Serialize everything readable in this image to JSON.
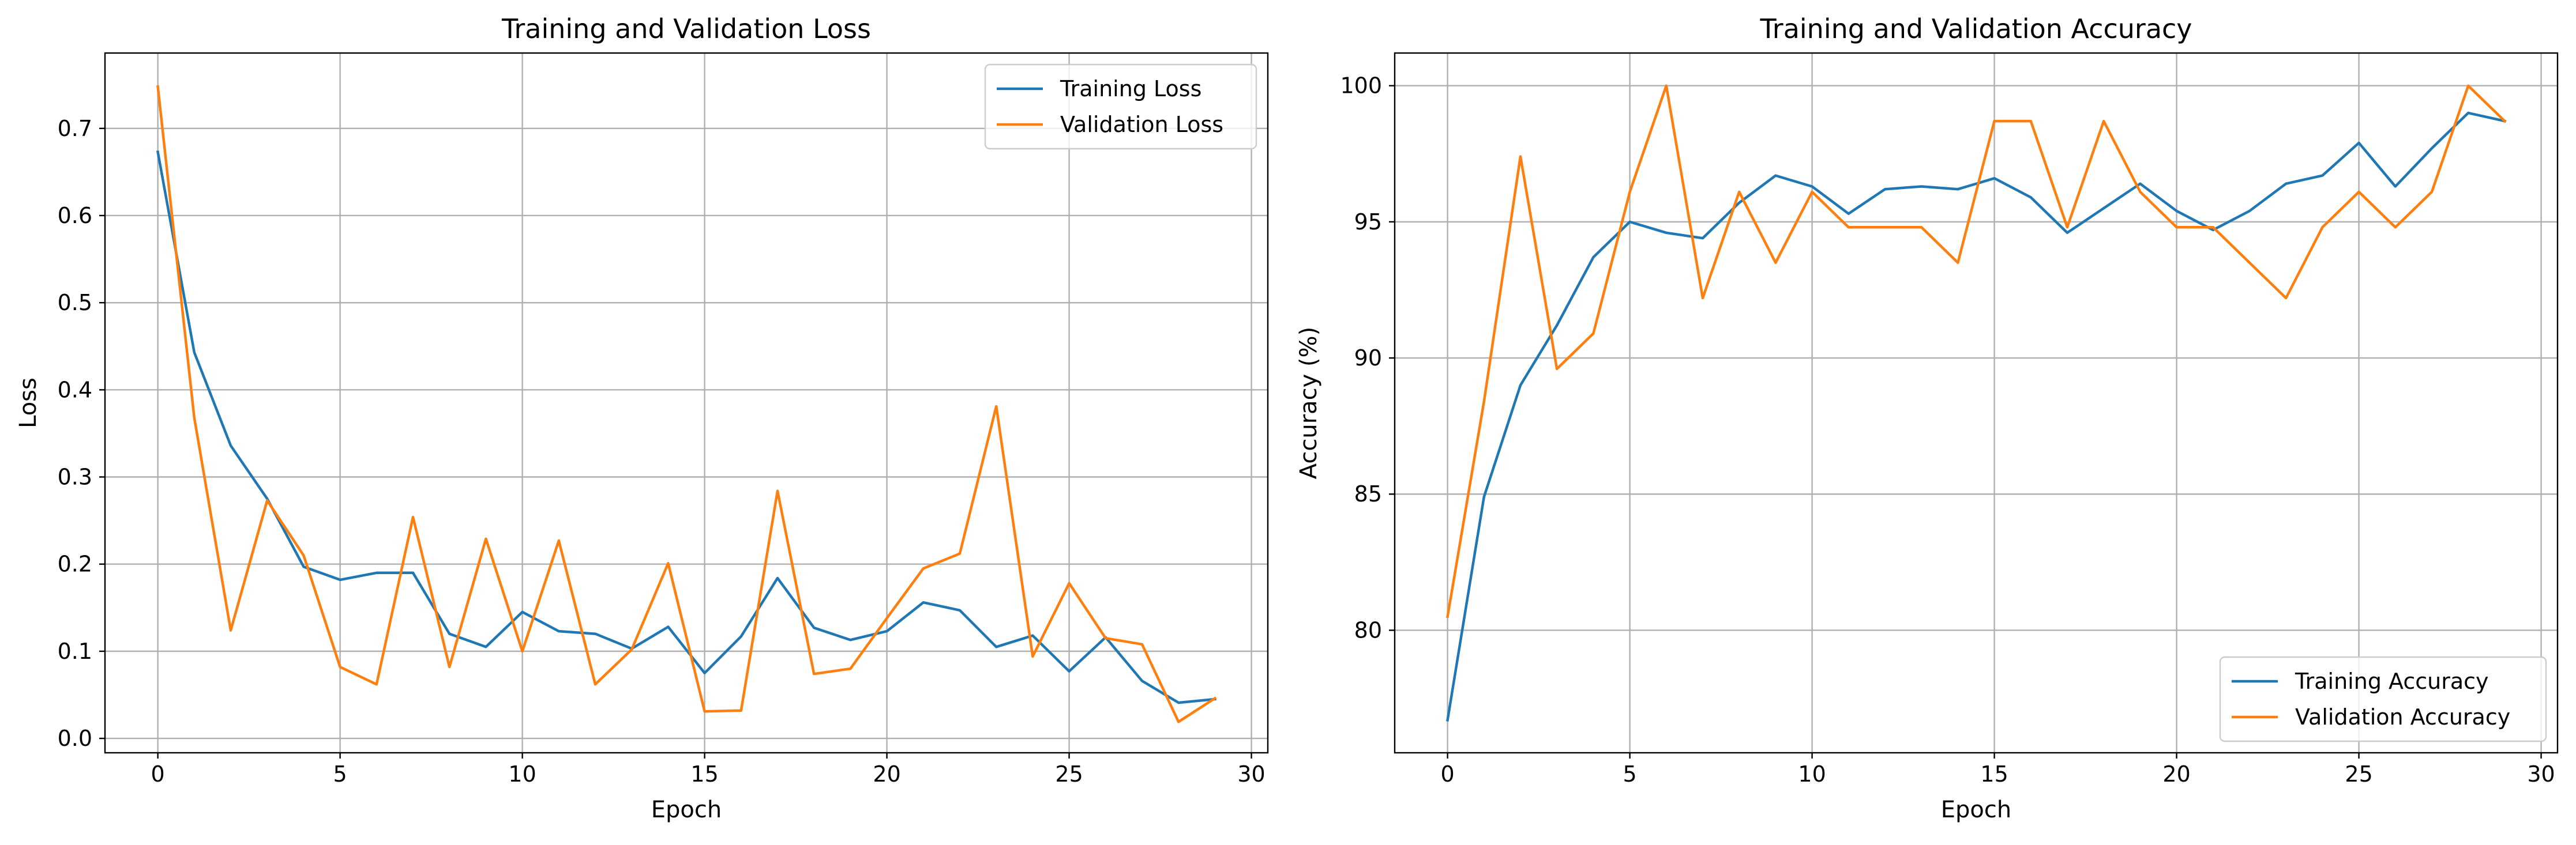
{
  "chart_data": [
    {
      "type": "line",
      "title": "Training and Validation Loss",
      "xlabel": "Epoch",
      "ylabel": "Loss",
      "xlim": [
        -1.45,
        30.45
      ],
      "ylim": [
        -0.0165,
        0.7865
      ],
      "xticks": [
        0,
        5,
        10,
        15,
        20,
        25,
        30
      ],
      "yticks": [
        0.0,
        0.1,
        0.2,
        0.3,
        0.4,
        0.5,
        0.6,
        0.7
      ],
      "ytick_labels": [
        "0.0",
        "0.1",
        "0.2",
        "0.3",
        "0.4",
        "0.5",
        "0.6",
        "0.7"
      ],
      "grid": true,
      "legend": "upper right",
      "x": [
        0,
        1,
        2,
        3,
        4,
        5,
        6,
        7,
        8,
        9,
        10,
        11,
        12,
        13,
        14,
        15,
        16,
        17,
        18,
        19,
        20,
        21,
        22,
        23,
        24,
        25,
        26,
        27,
        28,
        29
      ],
      "series": [
        {
          "name": "Training Loss",
          "color": "#1f77b4",
          "values": [
            0.673,
            0.443,
            0.336,
            0.275,
            0.197,
            0.182,
            0.19,
            0.19,
            0.12,
            0.105,
            0.145,
            0.123,
            0.12,
            0.103,
            0.128,
            0.075,
            0.117,
            0.184,
            0.127,
            0.113,
            0.123,
            0.156,
            0.147,
            0.105,
            0.118,
            0.077,
            0.116,
            0.066,
            0.041,
            0.045
          ]
        },
        {
          "name": "Validation Loss",
          "color": "#ff7f0e",
          "values": [
            0.748,
            0.368,
            0.124,
            0.273,
            0.21,
            0.082,
            0.062,
            0.254,
            0.082,
            0.229,
            0.1,
            0.227,
            0.062,
            0.102,
            0.201,
            0.031,
            0.032,
            0.284,
            0.074,
            0.08,
            0.138,
            0.195,
            0.212,
            0.381,
            0.094,
            0.178,
            0.115,
            0.108,
            0.019,
            0.046
          ]
        }
      ]
    },
    {
      "type": "line",
      "title": "Training and Validation Accuracy",
      "xlabel": "Epoch",
      "ylabel": "Accuracy (%)",
      "xlim": [
        -1.45,
        30.45
      ],
      "ylim": [
        75.5,
        101.2
      ],
      "xticks": [
        0,
        5,
        10,
        15,
        20,
        25,
        30
      ],
      "yticks": [
        80,
        85,
        90,
        95,
        100
      ],
      "ytick_labels": [
        "80",
        "85",
        "90",
        "95",
        "100"
      ],
      "grid": true,
      "legend": "lower right",
      "x": [
        0,
        1,
        2,
        3,
        4,
        5,
        6,
        7,
        8,
        9,
        10,
        11,
        12,
        13,
        14,
        15,
        16,
        17,
        18,
        19,
        20,
        21,
        22,
        23,
        24,
        25,
        26,
        27,
        28,
        29
      ],
      "series": [
        {
          "name": "Training Accuracy",
          "color": "#1f77b4",
          "values": [
            76.7,
            84.9,
            89.0,
            91.2,
            93.7,
            95.0,
            94.6,
            94.4,
            95.7,
            96.7,
            96.3,
            95.3,
            96.2,
            96.3,
            96.2,
            96.6,
            95.9,
            94.6,
            95.5,
            96.4,
            95.4,
            94.7,
            95.4,
            96.4,
            96.7,
            97.9,
            96.3,
            97.7,
            99.0,
            98.7
          ]
        },
        {
          "name": "Validation Accuracy",
          "color": "#ff7f0e",
          "values": [
            80.5,
            88.4,
            97.4,
            89.6,
            90.9,
            96.1,
            100.0,
            92.2,
            96.1,
            93.5,
            96.1,
            94.8,
            94.8,
            94.8,
            93.5,
            98.7,
            98.7,
            94.8,
            98.7,
            96.1,
            94.8,
            94.8,
            93.5,
            92.2,
            94.8,
            96.1,
            94.8,
            96.1,
            100.0,
            98.7
          ]
        }
      ]
    }
  ]
}
